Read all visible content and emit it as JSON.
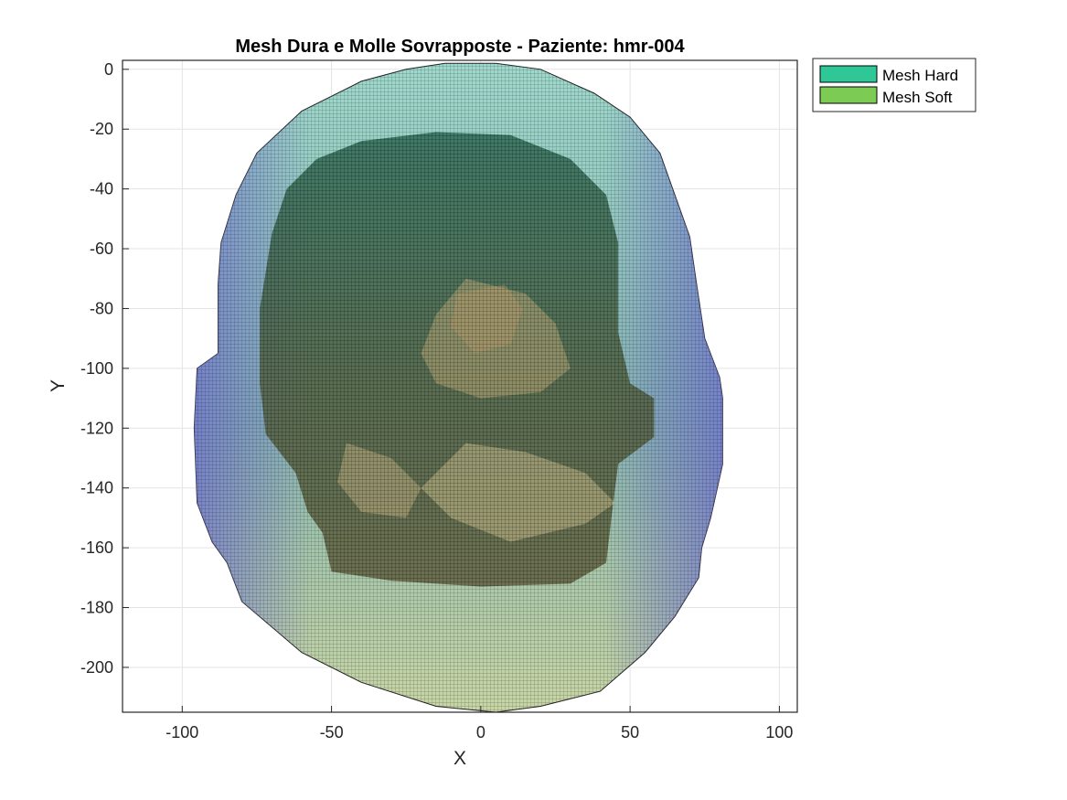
{
  "chart_data": {
    "type": "scatter",
    "title": "Mesh Dura e Molle Sovrapposte - Paziente: hmr-004",
    "xlabel": "X",
    "ylabel": "Y",
    "xlim": [
      -120,
      106
    ],
    "ylim": [
      -215,
      3
    ],
    "xticks": [
      -100,
      -50,
      0,
      50,
      100
    ],
    "yticks": [
      0,
      -20,
      -40,
      -60,
      -80,
      -100,
      -120,
      -140,
      -160,
      -180,
      -200
    ],
    "grid": true,
    "legend_position": "outside-top-right",
    "series": [
      {
        "name": "Mesh Hard",
        "color": "#2EC795",
        "outline": [
          [
            -12,
            2
          ],
          [
            5,
            2
          ],
          [
            20,
            0
          ],
          [
            38,
            -8
          ],
          [
            50,
            -16
          ],
          [
            60,
            -28
          ],
          [
            65,
            -42
          ],
          [
            70,
            -56
          ],
          [
            72,
            -70
          ],
          [
            75,
            -90
          ],
          [
            80,
            -103
          ],
          [
            81,
            -110
          ],
          [
            81,
            -132
          ],
          [
            77,
            -150
          ],
          [
            74,
            -160
          ],
          [
            73,
            -170
          ],
          [
            65,
            -183
          ],
          [
            55,
            -195
          ],
          [
            40,
            -208
          ],
          [
            20,
            -213
          ],
          [
            5,
            -215
          ],
          [
            -15,
            -213
          ],
          [
            -40,
            -205
          ],
          [
            -60,
            -195
          ],
          [
            -80,
            -178
          ],
          [
            -85,
            -165
          ],
          [
            -90,
            -158
          ],
          [
            -95,
            -145
          ],
          [
            -96,
            -120
          ],
          [
            -95,
            -100
          ],
          [
            -88,
            -95
          ],
          [
            -88,
            -72
          ],
          [
            -87,
            -58
          ],
          [
            -82,
            -42
          ],
          [
            -75,
            -28
          ],
          [
            -60,
            -14
          ],
          [
            -40,
            -4
          ],
          [
            -25,
            0
          ]
        ]
      },
      {
        "name": "Mesh Soft",
        "color": "#7BCB55",
        "outline": [
          [
            -40,
            -24
          ],
          [
            -15,
            -21
          ],
          [
            10,
            -22
          ],
          [
            30,
            -30
          ],
          [
            42,
            -42
          ],
          [
            46,
            -58
          ],
          [
            46,
            -88
          ],
          [
            50,
            -105
          ],
          [
            58,
            -110
          ],
          [
            58,
            -123
          ],
          [
            46,
            -132
          ],
          [
            44,
            -148
          ],
          [
            42,
            -165
          ],
          [
            30,
            -172
          ],
          [
            0,
            -173
          ],
          [
            -30,
            -171
          ],
          [
            -50,
            -168
          ],
          [
            -53,
            -155
          ],
          [
            -58,
            -148
          ],
          [
            -62,
            -135
          ],
          [
            -72,
            -122
          ],
          [
            -74,
            -105
          ],
          [
            -74,
            -80
          ],
          [
            -70,
            -55
          ],
          [
            -65,
            -40
          ],
          [
            -55,
            -30
          ]
        ]
      }
    ]
  }
}
